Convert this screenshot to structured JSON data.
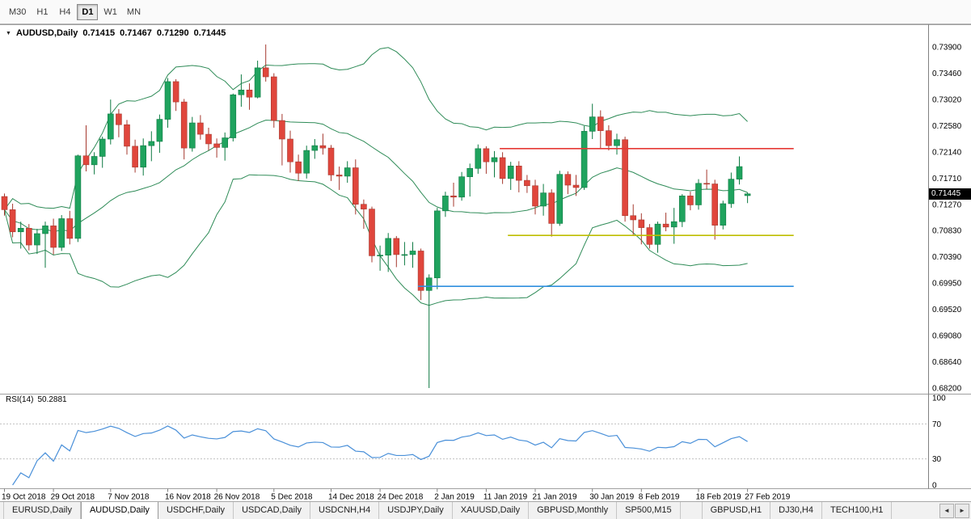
{
  "toolbar": {
    "timeframes": [
      {
        "label": "M30",
        "active": false
      },
      {
        "label": "H1",
        "active": false
      },
      {
        "label": "H4",
        "active": false
      },
      {
        "label": "D1",
        "active": true
      },
      {
        "label": "W1",
        "active": false
      },
      {
        "label": "MN",
        "active": false
      }
    ]
  },
  "chart": {
    "symbol_label": "AUDUSD,Daily",
    "ohlc": {
      "open": "0.71415",
      "high": "0.71467",
      "low": "0.71290",
      "close": "0.71445"
    },
    "current_price": "0.71445"
  },
  "rsi": {
    "label": "RSI(14)",
    "value": "50.2881"
  },
  "icons": {
    "title_marker": "▼",
    "scroll_left": "◄",
    "scroll_right": "►"
  },
  "colors": {
    "bull": "#1fa35e",
    "bear": "#e0463c",
    "bull_wick": "#0e7a42",
    "bear_wick": "#a5382e",
    "bollinger": "#2e8b57",
    "rsi_line": "#4a90d9",
    "resistance_line": "#e53935",
    "support_line_yellow": "#bdbd00",
    "support_line_blue": "#2f8fde",
    "axis_line": "#808080",
    "grid_dotted": "#c0c0c0",
    "price_badge_bg": "#000000",
    "price_badge_text": "#ffffff"
  },
  "tabs": {
    "items": [
      {
        "label": "EURUSD,Daily",
        "active": false
      },
      {
        "label": "AUDUSD,Daily",
        "active": true
      },
      {
        "label": "USDCHF,Daily",
        "active": false
      },
      {
        "label": "USDCAD,Daily",
        "active": false
      },
      {
        "label": "USDCNH,H4",
        "active": false
      },
      {
        "label": "USDJPY,Daily",
        "active": false
      },
      {
        "label": "XAUUSD,Daily",
        "active": false
      },
      {
        "label": "GBPUSD,Monthly",
        "active": false
      },
      {
        "label": "SP500,M15",
        "active": false
      },
      {
        "label": "GBPUSD,H1",
        "active": false
      },
      {
        "label": "DJ30,H4",
        "active": false
      },
      {
        "label": "TECH100,H1",
        "active": false
      }
    ]
  },
  "chart_data": {
    "type": "candlestick",
    "title": "AUDUSD,Daily",
    "ohlc_current": {
      "open": 0.71415,
      "high": 0.71467,
      "low": 0.7129,
      "close": 0.71445
    },
    "y_axis": {
      "top_price": 0.739,
      "bottom_price": 0.682,
      "tick_labels": [
        "0.73900",
        "0.73460",
        "0.73020",
        "0.72580",
        "0.72140",
        "0.71710",
        "0.71270",
        "0.70830",
        "0.70390",
        "0.69950",
        "0.69520",
        "0.69080",
        "0.68640",
        "0.68200"
      ]
    },
    "x_axis": {
      "tick_labels": [
        {
          "label": "19 Oct 2018",
          "index": 0
        },
        {
          "label": "29 Oct 2018",
          "index": 6
        },
        {
          "label": "7 Nov 2018",
          "index": 13
        },
        {
          "label": "16 Nov 2018",
          "index": 20
        },
        {
          "label": "26 Nov 2018",
          "index": 26
        },
        {
          "label": "5 Dec 2018",
          "index": 33
        },
        {
          "label": "14 Dec 2018",
          "index": 40
        },
        {
          "label": "24 Dec 2018",
          "index": 46
        },
        {
          "label": "2 Jan 2019",
          "index": 53
        },
        {
          "label": "11 Jan 2019",
          "index": 59
        },
        {
          "label": "21 Jan 2019",
          "index": 65
        },
        {
          "label": "30 Jan 2019",
          "index": 72
        },
        {
          "label": "8 Feb 2019",
          "index": 78
        },
        {
          "label": "18 Feb 2019",
          "index": 85
        },
        {
          "label": "27 Feb 2019",
          "index": 91
        }
      ]
    },
    "candles": [
      [
        0.714,
        0.7145,
        0.7108,
        0.7118
      ],
      [
        0.7118,
        0.7128,
        0.7072,
        0.7081
      ],
      [
        0.7081,
        0.7098,
        0.7053,
        0.7087
      ],
      [
        0.7087,
        0.7094,
        0.705,
        0.7059
      ],
      [
        0.7059,
        0.7086,
        0.7044,
        0.7078
      ],
      [
        0.7078,
        0.7098,
        0.7021,
        0.7091
      ],
      [
        0.7091,
        0.7103,
        0.7043,
        0.7055
      ],
      [
        0.7055,
        0.7109,
        0.7049,
        0.7103
      ],
      [
        0.7103,
        0.7116,
        0.706,
        0.707
      ],
      [
        0.707,
        0.721,
        0.7064,
        0.7208
      ],
      [
        0.7208,
        0.7259,
        0.7182,
        0.7193
      ],
      [
        0.7193,
        0.7214,
        0.7177,
        0.7207
      ],
      [
        0.7207,
        0.724,
        0.7188,
        0.7236
      ],
      [
        0.7236,
        0.7302,
        0.7227,
        0.7278
      ],
      [
        0.7278,
        0.7286,
        0.7239,
        0.726
      ],
      [
        0.726,
        0.7268,
        0.721,
        0.7224
      ],
      [
        0.7224,
        0.7235,
        0.718,
        0.7189
      ],
      [
        0.7189,
        0.7237,
        0.7175,
        0.7225
      ],
      [
        0.7225,
        0.7249,
        0.7199,
        0.7232
      ],
      [
        0.7232,
        0.7277,
        0.7213,
        0.7269
      ],
      [
        0.7269,
        0.7338,
        0.7255,
        0.7332
      ],
      [
        0.7332,
        0.7336,
        0.7283,
        0.7298
      ],
      [
        0.7298,
        0.7303,
        0.7202,
        0.7221
      ],
      [
        0.7221,
        0.7273,
        0.7215,
        0.7263
      ],
      [
        0.7263,
        0.7276,
        0.7235,
        0.7244
      ],
      [
        0.7244,
        0.7255,
        0.7217,
        0.7228
      ],
      [
        0.7228,
        0.7237,
        0.7205,
        0.7222
      ],
      [
        0.7222,
        0.7247,
        0.72,
        0.7238
      ],
      [
        0.7238,
        0.7312,
        0.7232,
        0.731
      ],
      [
        0.731,
        0.7344,
        0.729,
        0.7318
      ],
      [
        0.7318,
        0.7329,
        0.7285,
        0.7306
      ],
      [
        0.7306,
        0.7367,
        0.7304,
        0.7355
      ],
      [
        0.7355,
        0.7394,
        0.7332,
        0.734
      ],
      [
        0.734,
        0.7346,
        0.7255,
        0.7267
      ],
      [
        0.7267,
        0.7278,
        0.7192,
        0.7236
      ],
      [
        0.7236,
        0.725,
        0.718,
        0.7198
      ],
      [
        0.7198,
        0.721,
        0.7166,
        0.7179
      ],
      [
        0.7179,
        0.7225,
        0.717,
        0.7217
      ],
      [
        0.7217,
        0.7236,
        0.7203,
        0.7225
      ],
      [
        0.7225,
        0.7245,
        0.721,
        0.7221
      ],
      [
        0.7221,
        0.7226,
        0.7166,
        0.7176
      ],
      [
        0.7176,
        0.719,
        0.7151,
        0.7174
      ],
      [
        0.7174,
        0.7199,
        0.7163,
        0.7188
      ],
      [
        0.7188,
        0.7202,
        0.711,
        0.7127
      ],
      [
        0.7127,
        0.7135,
        0.7086,
        0.7119
      ],
      [
        0.7119,
        0.7123,
        0.703,
        0.7041
      ],
      [
        0.7041,
        0.7058,
        0.7016,
        0.7042
      ],
      [
        0.7042,
        0.7079,
        0.7014,
        0.707
      ],
      [
        0.707,
        0.7074,
        0.7022,
        0.7043
      ],
      [
        0.7043,
        0.7064,
        0.7025,
        0.7043
      ],
      [
        0.7043,
        0.7064,
        0.7021,
        0.7049
      ],
      [
        0.7049,
        0.7053,
        0.6967,
        0.6983
      ],
      [
        0.6983,
        0.701,
        0.682,
        0.7004
      ],
      [
        0.7004,
        0.7121,
        0.6985,
        0.7116
      ],
      [
        0.7116,
        0.7148,
        0.7106,
        0.7141
      ],
      [
        0.7141,
        0.7163,
        0.7123,
        0.7139
      ],
      [
        0.7139,
        0.7181,
        0.7133,
        0.7173
      ],
      [
        0.7173,
        0.7195,
        0.714,
        0.7187
      ],
      [
        0.7187,
        0.7227,
        0.7178,
        0.722
      ],
      [
        0.722,
        0.7224,
        0.7178,
        0.7198
      ],
      [
        0.7198,
        0.7216,
        0.7172,
        0.7205
      ],
      [
        0.7205,
        0.7214,
        0.7161,
        0.717
      ],
      [
        0.717,
        0.7198,
        0.7151,
        0.7191
      ],
      [
        0.7191,
        0.7199,
        0.7147,
        0.7167
      ],
      [
        0.7167,
        0.7176,
        0.7146,
        0.7158
      ],
      [
        0.7158,
        0.7168,
        0.711,
        0.7124
      ],
      [
        0.7124,
        0.7161,
        0.7108,
        0.7146
      ],
      [
        0.7146,
        0.7152,
        0.7073,
        0.7095
      ],
      [
        0.7095,
        0.7183,
        0.7091,
        0.7177
      ],
      [
        0.7177,
        0.7182,
        0.7144,
        0.7159
      ],
      [
        0.7159,
        0.7176,
        0.7141,
        0.7155
      ],
      [
        0.7155,
        0.7258,
        0.7151,
        0.7249
      ],
      [
        0.7249,
        0.7295,
        0.7236,
        0.7273
      ],
      [
        0.7273,
        0.7284,
        0.7221,
        0.725
      ],
      [
        0.725,
        0.7259,
        0.7217,
        0.7225
      ],
      [
        0.7225,
        0.7245,
        0.721,
        0.7235
      ],
      [
        0.7235,
        0.724,
        0.7098,
        0.7108
      ],
      [
        0.7108,
        0.7127,
        0.7076,
        0.7101
      ],
      [
        0.7101,
        0.7112,
        0.706,
        0.7088
      ],
      [
        0.7088,
        0.7094,
        0.7053,
        0.706
      ],
      [
        0.706,
        0.7098,
        0.7046,
        0.7094
      ],
      [
        0.7094,
        0.7113,
        0.7082,
        0.7089
      ],
      [
        0.7089,
        0.7121,
        0.7061,
        0.7098
      ],
      [
        0.7098,
        0.7144,
        0.7089,
        0.7141
      ],
      [
        0.7141,
        0.7148,
        0.7117,
        0.7126
      ],
      [
        0.7126,
        0.7169,
        0.7118,
        0.7162
      ],
      [
        0.7162,
        0.7185,
        0.7152,
        0.7161
      ],
      [
        0.7161,
        0.7168,
        0.7068,
        0.7092
      ],
      [
        0.7092,
        0.7133,
        0.7085,
        0.7128
      ],
      [
        0.7128,
        0.718,
        0.7121,
        0.7169
      ],
      [
        0.7169,
        0.7207,
        0.716,
        0.719
      ],
      [
        0.71415,
        0.71467,
        0.7129,
        0.71445
      ]
    ],
    "bollinger": {
      "period": 20,
      "deviations": 2,
      "color": "#2e8b57"
    },
    "h_lines": [
      {
        "name": "resistance-line-red",
        "color": "#e53935",
        "price": 0.722,
        "from": 61,
        "to": 97
      },
      {
        "name": "support-line-yellow",
        "color": "#bdbd00",
        "price": 0.7075,
        "from": 62,
        "to": 97
      },
      {
        "name": "support-line-blue",
        "color": "#2f8fde",
        "price": 0.699,
        "from": 51,
        "to": 97
      }
    ],
    "rsi": {
      "period": 14,
      "value": 50.2881,
      "color": "#4a90d9",
      "levels": [
        70,
        30
      ],
      "axis_labels": [
        100,
        70,
        30,
        0
      ]
    }
  }
}
